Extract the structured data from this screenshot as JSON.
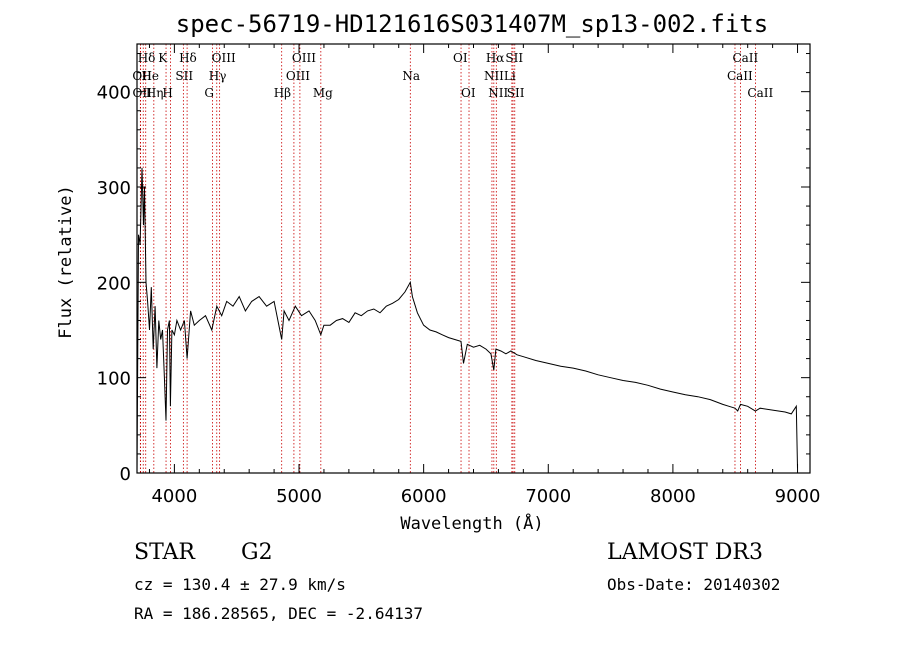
{
  "chart_data": {
    "type": "line",
    "title": "spec-56719-HD121616S031407M_sp13-002.fits",
    "xlabel": "Wavelength (Å)",
    "ylabel": "Flux (relative)",
    "xlim": [
      3700,
      9100
    ],
    "ylim": [
      0,
      450
    ],
    "xticks": [
      4000,
      5000,
      6000,
      7000,
      8000,
      9000
    ],
    "yticks": [
      0,
      100,
      200,
      300,
      400
    ],
    "series": [
      {
        "name": "spectrum",
        "x": [
          3700,
          3712,
          3725,
          3740,
          3752,
          3760,
          3772,
          3785,
          3800,
          3815,
          3830,
          3845,
          3860,
          3875,
          3890,
          3905,
          3920,
          3933,
          3945,
          3960,
          3968,
          3980,
          4000,
          4020,
          4050,
          4080,
          4102,
          4130,
          4160,
          4200,
          4250,
          4300,
          4340,
          4380,
          4420,
          4470,
          4520,
          4570,
          4620,
          4680,
          4740,
          4800,
          4861,
          4880,
          4920,
          4970,
          5020,
          5080,
          5130,
          5175,
          5200,
          5250,
          5300,
          5350,
          5400,
          5450,
          5500,
          5550,
          5600,
          5650,
          5700,
          5750,
          5800,
          5850,
          5893,
          5910,
          5950,
          6000,
          6050,
          6100,
          6150,
          6200,
          6250,
          6300,
          6320,
          6350,
          6400,
          6450,
          6500,
          6540,
          6563,
          6580,
          6620,
          6660,
          6700,
          6750,
          6800,
          6900,
          7000,
          7100,
          7200,
          7300,
          7400,
          7500,
          7600,
          7700,
          7800,
          7900,
          8000,
          8100,
          8200,
          8300,
          8400,
          8450,
          8498,
          8520,
          8542,
          8600,
          8662,
          8700,
          8800,
          8900,
          8950,
          8990,
          9000
        ],
        "y": [
          0,
          250,
          240,
          320,
          260,
          300,
          200,
          180,
          150,
          195,
          130,
          175,
          110,
          160,
          140,
          150,
          100,
          55,
          150,
          160,
          70,
          150,
          145,
          160,
          150,
          160,
          120,
          170,
          155,
          160,
          165,
          150,
          175,
          165,
          180,
          175,
          185,
          170,
          180,
          185,
          175,
          180,
          140,
          170,
          160,
          175,
          165,
          170,
          160,
          145,
          155,
          155,
          160,
          162,
          158,
          168,
          165,
          170,
          172,
          168,
          175,
          178,
          182,
          190,
          200,
          185,
          168,
          155,
          150,
          148,
          145,
          142,
          140,
          138,
          115,
          135,
          132,
          134,
          130,
          125,
          108,
          130,
          128,
          125,
          128,
          124,
          122,
          118,
          115,
          112,
          110,
          107,
          103,
          100,
          97,
          95,
          92,
          88,
          85,
          82,
          80,
          77,
          72,
          70,
          68,
          65,
          72,
          70,
          65,
          68,
          66,
          64,
          62,
          70,
          5
        ]
      }
    ],
    "annotations": [
      {
        "label": "HẟK",
        "wavelength": 3933
      },
      {
        "label": "OII",
        "wavelength": 3727
      },
      {
        "label": "OII",
        "wavelength": 3729
      },
      {
        "label": "Hδ",
        "wavelength": 3750
      },
      {
        "label": "He",
        "wavelength": 3770
      },
      {
        "label": "Hη",
        "wavelength": 3835
      },
      {
        "label": "K",
        "wavelength": 3933
      },
      {
        "label": "H",
        "wavelength": 3968
      },
      {
        "label": "Hδ",
        "wavelength": 4102
      },
      {
        "label": "SII",
        "wavelength": 4072
      },
      {
        "label": "OIII",
        "wavelength": 4363
      },
      {
        "label": "Hγ",
        "wavelength": 4340
      },
      {
        "label": "G",
        "wavelength": 4305
      },
      {
        "label": "OIII",
        "wavelength": 5007
      },
      {
        "label": "OIII",
        "wavelength": 4959
      },
      {
        "label": "Hβ",
        "wavelength": 4861
      },
      {
        "label": "Mg",
        "wavelength": 5175
      },
      {
        "label": "Na",
        "wavelength": 5893
      },
      {
        "label": "OI",
        "wavelength": 6300
      },
      {
        "label": "OI",
        "wavelength": 6364
      },
      {
        "label": "Hα",
        "wavelength": 6563
      },
      {
        "label": "SII",
        "wavelength": 6717
      },
      {
        "label": "NII",
        "wavelength": 6548
      },
      {
        "label": "Li",
        "wavelength": 6708
      },
      {
        "label": "NII",
        "wavelength": 6583
      },
      {
        "label": "SII",
        "wavelength": 6731
      },
      {
        "label": "CaII",
        "wavelength": 8542
      },
      {
        "label": "CaII",
        "wavelength": 8498
      },
      {
        "label": "CaII",
        "wavelength": 8662
      }
    ],
    "label_rows": {
      "row1": [
        "Hδ",
        "K",
        "Hδ",
        "OIII",
        "OIII",
        "OI",
        "Hα",
        "SII",
        "CaII"
      ],
      "row2": [
        "OII",
        "He",
        "SII",
        "Hγ",
        "OIII",
        "Na",
        "NII",
        "Li",
        "CaII"
      ],
      "row3": [
        "OII",
        "Hη",
        "H",
        "G",
        "Hβ",
        "Mg",
        "OI",
        "NII",
        "SII",
        "CaII"
      ]
    }
  },
  "info": {
    "object_type": "STAR",
    "spectral_class": "G2",
    "survey": "LAMOST DR3",
    "redshift": "cz = 130.4 ± 27.9 km/s",
    "obs_date": "Obs-Date: 20140302",
    "coords": "RA = 186.28565, DEC =  -2.64137"
  }
}
